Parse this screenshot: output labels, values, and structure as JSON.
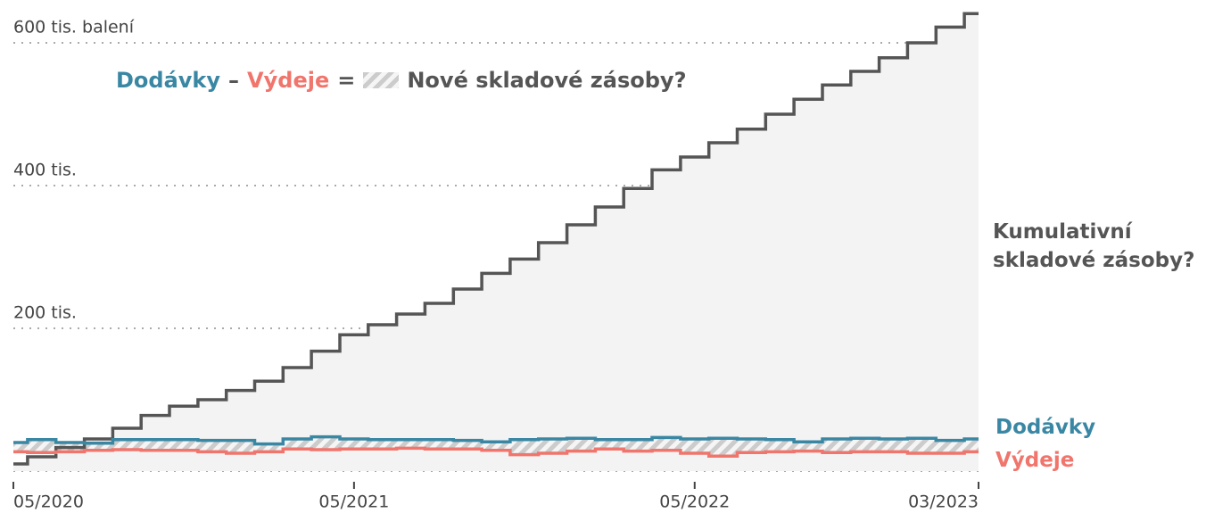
{
  "chart_data": {
    "type": "step",
    "categories": [
      "05/2020",
      null,
      null,
      null,
      null,
      null,
      null,
      null,
      null,
      null,
      null,
      null,
      "05/2021",
      null,
      null,
      null,
      null,
      null,
      null,
      null,
      null,
      null,
      null,
      null,
      "05/2022",
      null,
      null,
      null,
      null,
      null,
      null,
      null,
      null,
      null,
      "03/2023"
    ],
    "ylim": [
      -15,
      660
    ],
    "yticks": [
      {
        "value": 200,
        "label": "200 tis."
      },
      {
        "value": 400,
        "label": "400 tis."
      },
      {
        "value": 600,
        "label": "600 tis. balení"
      }
    ],
    "grid": true,
    "formula": {
      "minus": "–",
      "equals": "=",
      "result": "Nové skladové zásoby?"
    },
    "series": [
      {
        "name": "Kumulativní skladové zásoby?",
        "color": "#555555",
        "fill": "#f3f3f3",
        "values": [
          10,
          20,
          33,
          45,
          60,
          78,
          91,
          100,
          113,
          126,
          145,
          168,
          191,
          205,
          220,
          235,
          255,
          277,
          297,
          320,
          345,
          370,
          396,
          422,
          440,
          460,
          479,
          500,
          521,
          541,
          560,
          579,
          600,
          622,
          641
        ]
      },
      {
        "name": "Dodávky",
        "color": "#3a87a4",
        "values": [
          40,
          44,
          40,
          39,
          44,
          44,
          44,
          43,
          43,
          38,
          45,
          48,
          45,
          44,
          44,
          44,
          43,
          41,
          44,
          45,
          46,
          44,
          44,
          47,
          45,
          46,
          45,
          44,
          41,
          45,
          46,
          45,
          46,
          43,
          45
        ]
      },
      {
        "name": "Výdeje",
        "color": "#f0756c",
        "values": [
          27,
          26,
          27,
          29,
          30,
          29,
          29,
          27,
          25,
          27,
          31,
          30,
          31,
          31,
          32,
          31,
          31,
          29,
          23,
          25,
          28,
          31,
          28,
          29,
          25,
          21,
          26,
          27,
          28,
          26,
          27,
          27,
          25,
          25,
          27
        ]
      }
    ]
  }
}
